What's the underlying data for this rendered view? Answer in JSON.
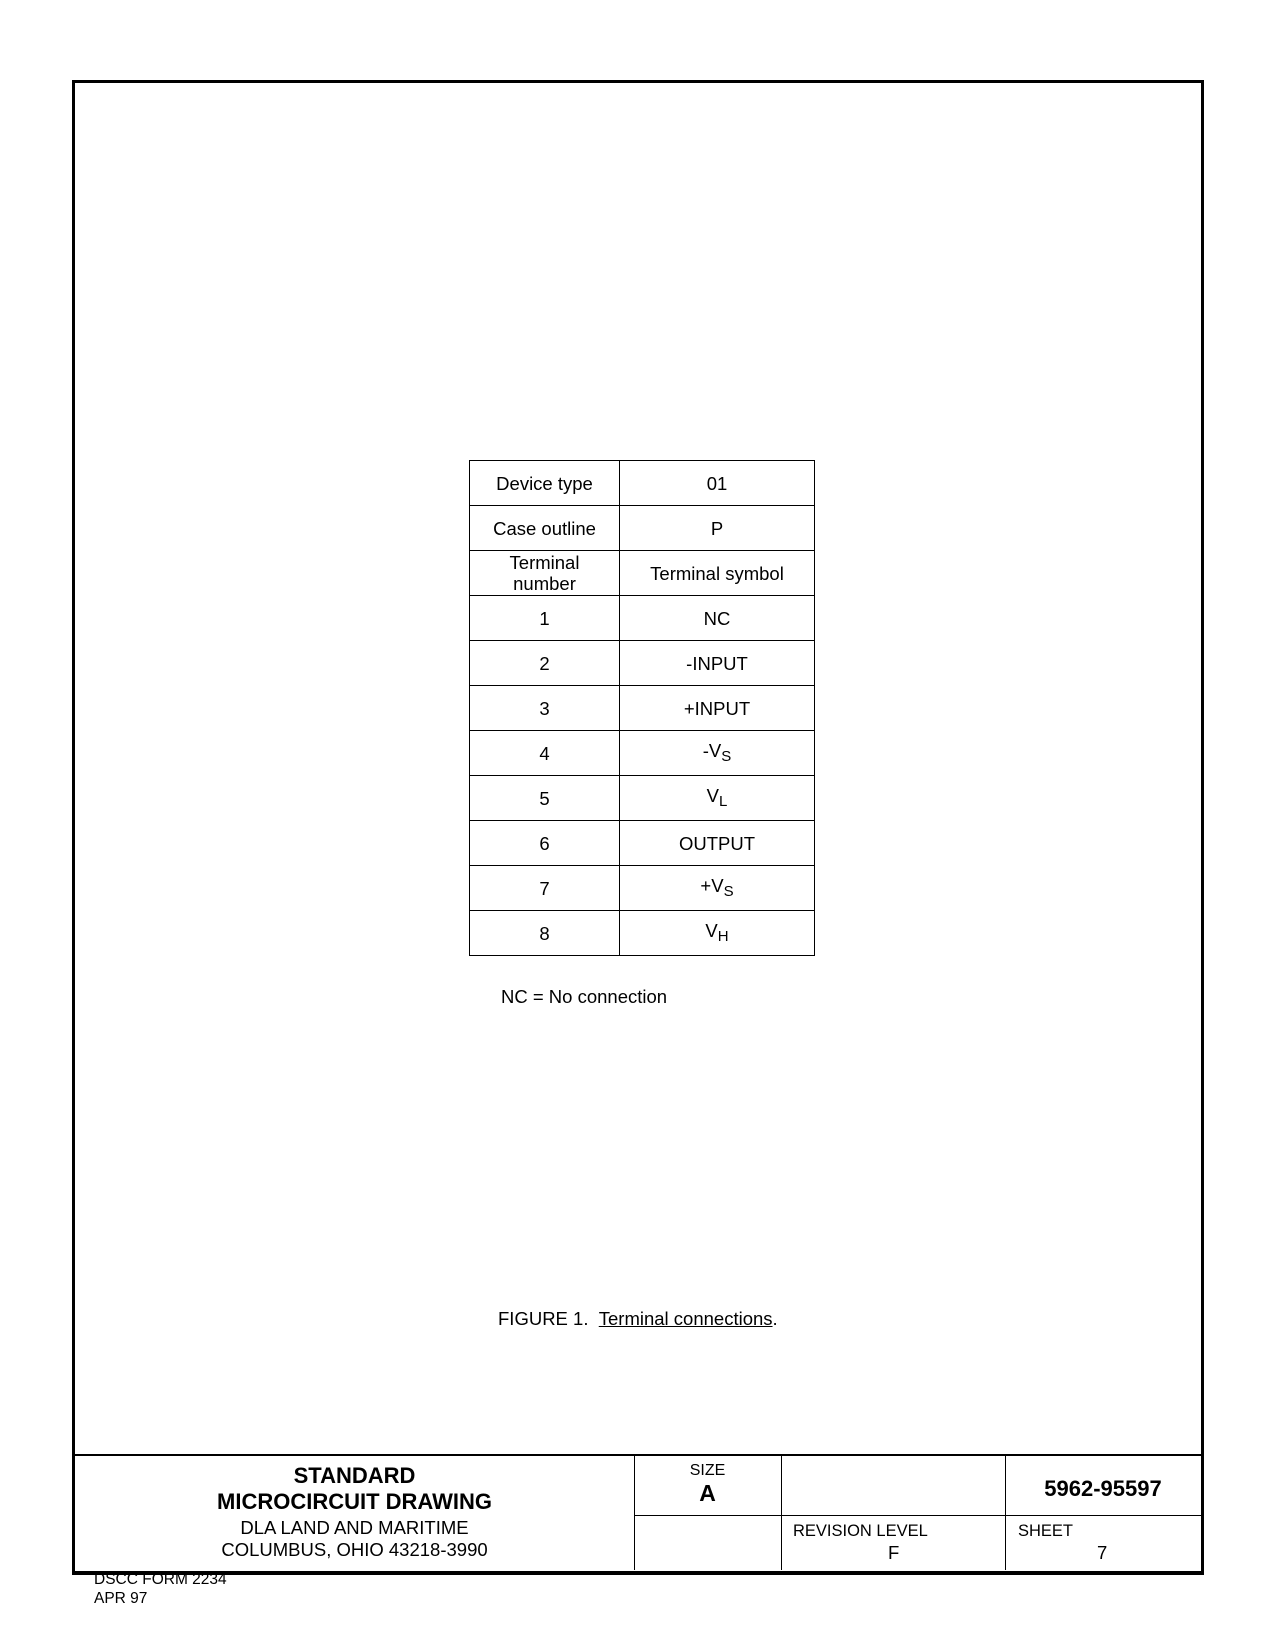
{
  "table": {
    "rows": [
      {
        "left": "Device type",
        "right": "01"
      },
      {
        "left": "Case outline",
        "right": "P"
      },
      {
        "left": "Terminal number",
        "right": "Terminal symbol"
      }
    ],
    "terminals": [
      {
        "number": "1",
        "symbol": "NC",
        "sub": ""
      },
      {
        "number": "2",
        "symbol": "-INPUT",
        "sub": ""
      },
      {
        "number": "3",
        "symbol": "+INPUT",
        "sub": ""
      },
      {
        "number": "4",
        "symbol": "-V",
        "sub": "S"
      },
      {
        "number": "5",
        "symbol": "V",
        "sub": "L"
      },
      {
        "number": "6",
        "symbol": "OUTPUT",
        "sub": ""
      },
      {
        "number": "7",
        "symbol": "+V",
        "sub": "S"
      },
      {
        "number": "8",
        "symbol": "V",
        "sub": "H"
      }
    ]
  },
  "note": "NC = No connection",
  "caption": {
    "prefix": "FIGURE 1.",
    "title": "Terminal connections"
  },
  "title_block": {
    "line1": "STANDARD",
    "line2": "MICROCIRCUIT DRAWING",
    "line3": "DLA LAND AND MARITIME",
    "line4": "COLUMBUS, OHIO 43218-3990",
    "size_label": "SIZE",
    "size_value": "A",
    "number": "5962-95597",
    "revision_label": "REVISION LEVEL",
    "revision_value": "F",
    "sheet_label": "SHEET",
    "sheet_value": "7"
  },
  "form": {
    "line1": "DSCC FORM 2234",
    "line2": "APR 97"
  }
}
